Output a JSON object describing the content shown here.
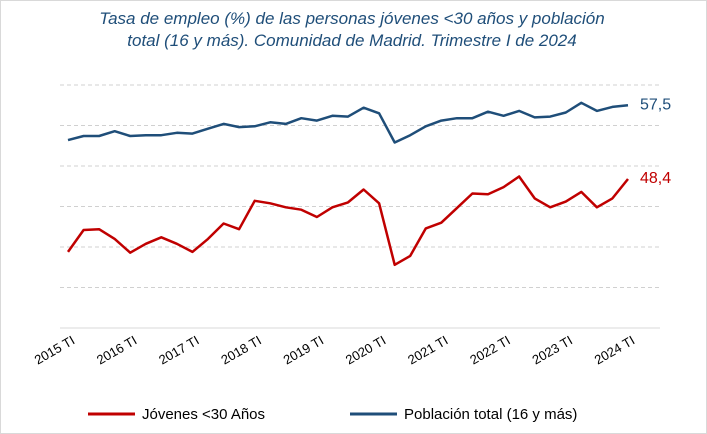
{
  "chart_data": {
    "type": "line",
    "title": "Tasa de empleo (%) de las personas jóvenes <30 años y población total (16 y más). Comunidad de Madrid. Trimestre I de 2024",
    "categories": [
      "2015 TI",
      null,
      null,
      null,
      "2016 TI",
      null,
      null,
      null,
      "2017 TI",
      null,
      null,
      null,
      "2018 TI",
      null,
      null,
      null,
      "2019 TI",
      null,
      null,
      null,
      "2020 TI",
      null,
      null,
      null,
      "2021 TI",
      null,
      null,
      null,
      "2022 TI",
      null,
      null,
      null,
      "2023 TI",
      null,
      null,
      null,
      "2024 TI"
    ],
    "series": [
      {
        "name": "Jóvenes <30 Años",
        "color": "#c00000",
        "values": [
          39.4,
          42.1,
          42.2,
          41.0,
          39.3,
          40.4,
          41.2,
          40.4,
          39.4,
          41.0,
          42.9,
          42.2,
          45.7,
          45.4,
          44.9,
          44.6,
          43.7,
          44.9,
          45.5,
          47.1,
          45.4,
          37.8,
          38.9,
          42.3,
          43.0,
          44.8,
          46.6,
          46.5,
          47.4,
          48.7,
          46.0,
          44.9,
          45.6,
          46.8,
          44.9,
          46.0,
          48.4
        ],
        "value_labels": [
          null,
          null,
          null,
          null,
          null,
          null,
          null,
          null,
          null,
          null,
          null,
          null,
          null,
          null,
          null,
          null,
          null,
          null,
          null,
          null,
          null,
          null,
          null,
          null,
          null,
          null,
          null,
          null,
          null,
          null,
          null,
          null,
          null,
          null,
          null,
          null,
          "48,4"
        ]
      },
      {
        "name": "Población total (16 y más)",
        "color": "#1f4e79",
        "values": [
          53.2,
          53.7,
          53.7,
          54.3,
          53.7,
          53.8,
          53.8,
          54.1,
          54.0,
          54.6,
          55.2,
          54.8,
          54.9,
          55.4,
          55.2,
          55.9,
          55.6,
          56.2,
          56.1,
          57.2,
          56.5,
          52.9,
          53.8,
          54.9,
          55.6,
          55.9,
          55.9,
          56.7,
          56.2,
          56.8,
          56.0,
          56.1,
          56.6,
          57.8,
          56.8,
          57.3,
          57.5
        ],
        "value_labels": [
          null,
          null,
          null,
          null,
          null,
          null,
          null,
          null,
          null,
          null,
          null,
          null,
          null,
          null,
          null,
          null,
          null,
          null,
          null,
          null,
          null,
          null,
          null,
          null,
          null,
          null,
          null,
          null,
          null,
          null,
          null,
          null,
          null,
          null,
          null,
          null,
          "57,5"
        ]
      }
    ],
    "ylim": [
      30,
      60
    ],
    "yticks": [
      30,
      35,
      40,
      45,
      50,
      55,
      60
    ],
    "grid": true,
    "legend": "bottom"
  }
}
